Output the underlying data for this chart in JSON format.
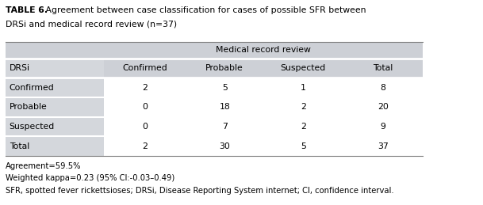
{
  "title_bold": "TABLE 6.",
  "title_rest": " Agreement between case classification for cases of possible SFR between DRSi and medical record review (n=37)",
  "title_line1_bold": "TABLE 6.",
  "title_line1_rest": " Agreement between case classification for cases of possible SFR between",
  "title_line2": "DRSi and medical record review (n=37)",
  "header_group": "Medical record review",
  "col0_header": "DRSi",
  "columns": [
    "Confirmed",
    "Probable",
    "Suspected",
    "Total"
  ],
  "rows": [
    {
      "label": "Confirmed",
      "values": [
        "2",
        "5",
        "1",
        "8"
      ]
    },
    {
      "label": "Probable",
      "values": [
        "0",
        "18",
        "2",
        "20"
      ]
    },
    {
      "label": "Suspected",
      "values": [
        "0",
        "7",
        "2",
        "9"
      ]
    },
    {
      "label": "Total",
      "values": [
        "2",
        "30",
        "5",
        "37"
      ]
    }
  ],
  "footnotes": [
    "Agreement=59.5%",
    "Weighted kappa=0.23 (95% CI:-0.03–0.49)",
    "SFR, spotted fever rickettsioses; DRSi, Disease Reporting System internet; CI, confidence interval."
  ],
  "header_bg": "#cdd0d6",
  "label_col_bg": "#d4d7dc",
  "data_bg": "#ffffff",
  "text_color": "#000000",
  "fig_width": 6.09,
  "fig_height": 2.59,
  "dpi": 100,
  "font_size": 7.8,
  "footnote_font_size": 7.2
}
